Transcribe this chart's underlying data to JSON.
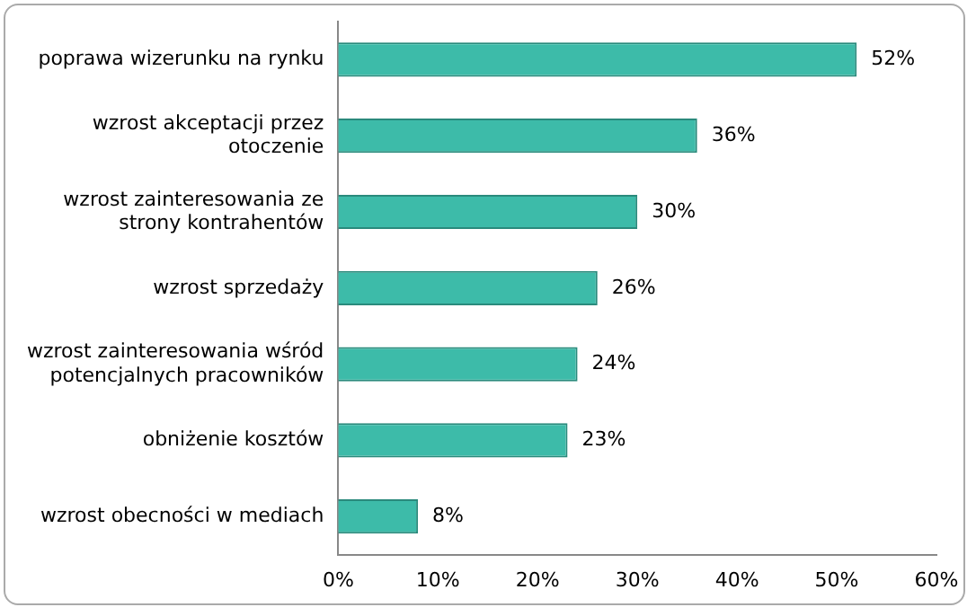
{
  "chart_data": {
    "type": "bar",
    "orientation": "horizontal",
    "categories": [
      "poprawa wizerunku na rynku",
      "wzrost akceptacji przez otoczenie",
      "wzrost zainteresowania ze strony kontrahentów",
      "wzrost sprzedaży",
      "wzrost zainteresowania wśród potencjalnych pracowników",
      "obniżenie kosztów",
      "wzrost obecności w mediach"
    ],
    "values": [
      52,
      36,
      30,
      26,
      24,
      23,
      8
    ],
    "value_labels": [
      "52%",
      "36%",
      "30%",
      "26%",
      "24%",
      "23%",
      "8%"
    ],
    "color": "#3dbba9",
    "xlim": [
      0,
      60
    ],
    "xticks": [
      {
        "value": 0,
        "label": "0%"
      },
      {
        "value": 10,
        "label": "10%"
      },
      {
        "value": 20,
        "label": "20%"
      },
      {
        "value": 30,
        "label": "30%"
      },
      {
        "value": 40,
        "label": "40%"
      },
      {
        "value": 50,
        "label": "50%"
      },
      {
        "value": 60,
        "label": "60%"
      }
    ],
    "grid": false,
    "legend": false
  }
}
